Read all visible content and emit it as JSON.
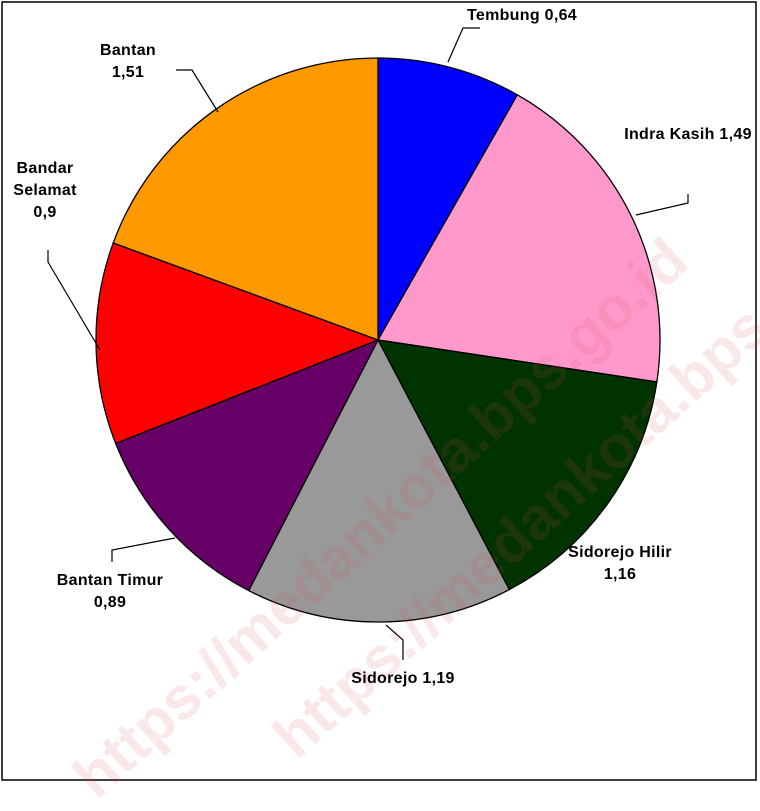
{
  "watermark": "https://medankota.bps.go.id",
  "chart_data": {
    "type": "pie",
    "categories": [
      "Tembung",
      "Indra Kasih",
      "Sidorejo Hilir",
      "Sidorejo",
      "Bantan Timur",
      "Bandar Selamat",
      "Bantan"
    ],
    "values": [
      0.64,
      1.49,
      1.16,
      1.19,
      0.89,
      0.9,
      1.51
    ],
    "value_labels": [
      "0,64",
      "1,49",
      "1,16",
      "1,19",
      "0,89",
      "0,9",
      "1,51"
    ],
    "colors": [
      "#0000ff",
      "#ff99cc",
      "#003300",
      "#999999",
      "#660066",
      "#ff0000",
      "#ff9900"
    ]
  }
}
